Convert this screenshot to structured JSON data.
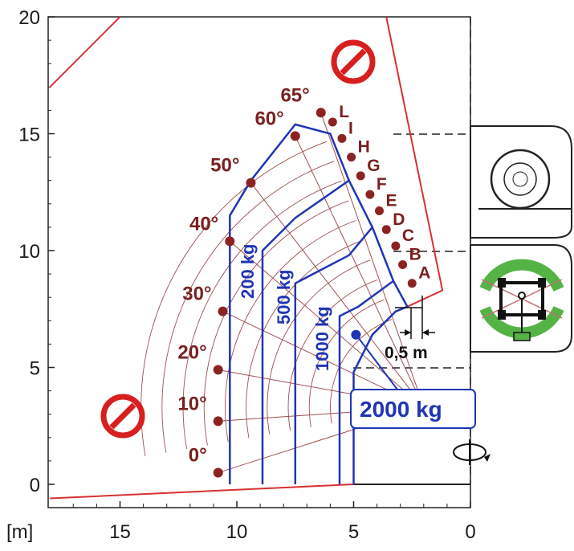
{
  "chart_data": {
    "type": "line",
    "title": "",
    "xlabel": "[m]",
    "ylabel": "",
    "x_axis": {
      "range": [
        0,
        18
      ],
      "reversed": true,
      "ticks": [
        15,
        10,
        5,
        0
      ],
      "tick_labels": [
        "15",
        "10",
        "5",
        "0"
      ]
    },
    "y_axis": {
      "range": [
        -1,
        20
      ],
      "ticks": [
        0,
        5,
        10,
        15,
        20
      ],
      "tick_labels": [
        "0",
        "5",
        "10",
        "15",
        "20"
      ]
    },
    "grid": false,
    "angles": [
      {
        "label": "0°",
        "x": 10.8,
        "y": 0.5
      },
      {
        "label": "10°",
        "x": 10.8,
        "y": 2.7
      },
      {
        "label": "20°",
        "x": 10.8,
        "y": 4.9
      },
      {
        "label": "30°",
        "x": 10.6,
        "y": 7.4
      },
      {
        "label": "40°",
        "x": 10.3,
        "y": 10.4
      },
      {
        "label": "50°",
        "x": 9.4,
        "y": 12.9
      },
      {
        "label": "60°",
        "x": 7.5,
        "y": 14.9
      },
      {
        "label": "65°",
        "x": 6.4,
        "y": 15.9
      }
    ],
    "extensions": [
      {
        "label": "L",
        "x": 5.9,
        "y": 15.5
      },
      {
        "label": "I",
        "x": 5.5,
        "y": 14.8
      },
      {
        "label": "H",
        "x": 5.1,
        "y": 14.0
      },
      {
        "label": "G",
        "x": 4.7,
        "y": 13.2
      },
      {
        "label": "F",
        "x": 4.3,
        "y": 12.4
      },
      {
        "label": "E",
        "x": 3.9,
        "y": 11.7
      },
      {
        "label": "D",
        "x": 3.6,
        "y": 10.9
      },
      {
        "label": "C",
        "x": 3.2,
        "y": 10.2
      },
      {
        "label": "B",
        "x": 2.9,
        "y": 9.4
      },
      {
        "label": "A",
        "x": 2.5,
        "y": 8.6
      }
    ],
    "series": [
      {
        "name": "200 kg",
        "points": [
          [
            10.3,
            0.0
          ],
          [
            10.3,
            11.5
          ],
          [
            9.4,
            13.0
          ],
          [
            7.5,
            15.4
          ],
          [
            6.0,
            15.0
          ],
          [
            5.2,
            13.0
          ]
        ]
      },
      {
        "name": "500 kg",
        "points": [
          [
            8.9,
            0.0
          ],
          [
            8.9,
            10.0
          ],
          [
            7.5,
            11.4
          ],
          [
            5.2,
            13.0
          ],
          [
            4.2,
            11.0
          ]
        ]
      },
      {
        "name": "1000 kg",
        "points": [
          [
            7.5,
            0.0
          ],
          [
            7.5,
            8.6
          ],
          [
            5.2,
            9.8
          ],
          [
            4.2,
            11.0
          ],
          [
            3.3,
            8.7
          ]
        ]
      },
      {
        "name": "2000 kg",
        "points": [
          [
            5.0,
            0.0
          ],
          [
            5.0,
            4.8
          ],
          [
            4.2,
            6.4
          ],
          [
            3.2,
            7.4
          ],
          [
            2.7,
            7.6
          ],
          [
            3.3,
            8.7
          ],
          [
            4.8,
            7.6
          ],
          [
            5.6,
            7.2
          ],
          [
            5.6,
            0.0
          ]
        ]
      }
    ],
    "hazard_boundary": [
      [
        18,
        17
      ],
      [
        15,
        20
      ]
    ],
    "hazard_outline": [
      [
        3.6,
        20
      ],
      [
        1.2,
        8.3
      ],
      [
        2.7,
        7.6
      ]
    ],
    "ground_line": [
      [
        18,
        -0.6
      ],
      [
        5.0,
        0.0
      ]
    ],
    "load_center_point": {
      "x": 4.9,
      "y": 6.4
    },
    "annotation_dimension": "0,5 m",
    "annotation_2000": "2000 kg"
  },
  "icons": {
    "no_entry_top": "no-entry-icon",
    "no_entry_bottom": "no-entry-icon",
    "rotation": "rotate-arrow-icon",
    "wheel": "wheel-icon",
    "chassis": "chassis-top-view-icon"
  },
  "colors": {
    "envelope": "#1f35b5",
    "angle_labels": "#7a1f1f",
    "angle_dots": "#8b2323",
    "hazard": "#d83030",
    "grid_arcs": "#a05050",
    "stabilizer_green": "#55b346"
  }
}
